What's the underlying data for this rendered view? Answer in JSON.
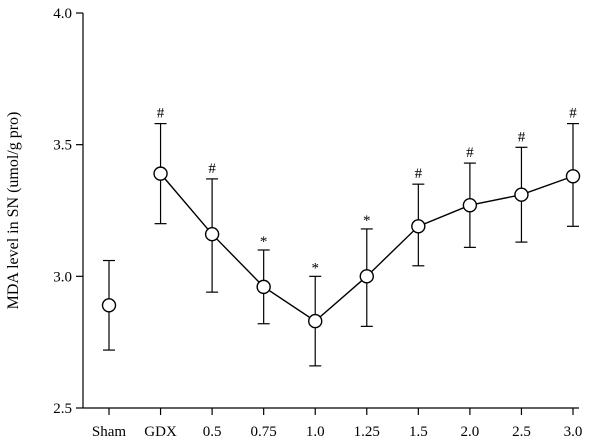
{
  "chart_data": {
    "type": "line",
    "title": "",
    "xlabel": "",
    "ylabel": "MDA level in SN (umol/g pro)",
    "categories": [
      "Sham",
      "GDX",
      "0.5",
      "0.75",
      "1.0",
      "1.25",
      "1.5",
      "2.0",
      "2.5",
      "3.0"
    ],
    "ylim": [
      2.5,
      4.0
    ],
    "yticks": [
      "2.5",
      "3.0",
      "3.5",
      "4.0"
    ],
    "grid": false,
    "legend": "none",
    "marker": "open-circle",
    "line_color": "#000000",
    "series": [
      {
        "values": [
          2.89,
          3.39,
          3.16,
          2.96,
          2.83,
          3.0,
          3.19,
          3.27,
          3.31,
          3.38
        ],
        "err_upper": [
          3.06,
          3.58,
          3.37,
          3.1,
          3.0,
          3.18,
          3.35,
          3.43,
          3.49,
          3.58
        ],
        "err_lower": [
          2.72,
          3.2,
          2.94,
          2.82,
          2.66,
          2.81,
          3.04,
          3.11,
          3.13,
          3.19
        ],
        "annotations": [
          "",
          "#",
          "#",
          "*",
          "*",
          "*",
          "#",
          "#",
          "#",
          "#"
        ]
      }
    ]
  }
}
